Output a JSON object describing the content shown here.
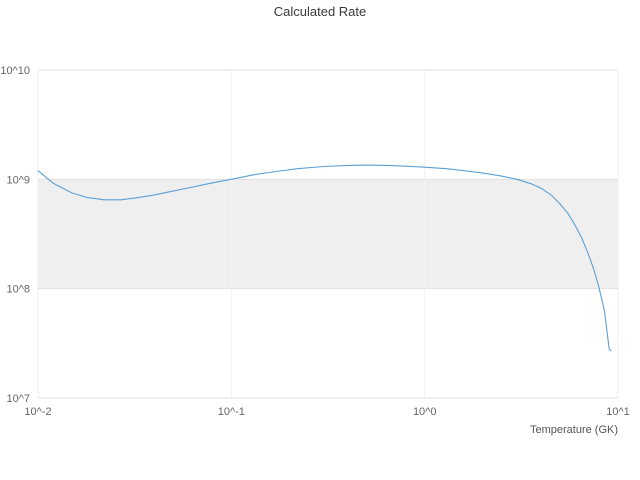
{
  "colors": {
    "line": "#5c9fd6",
    "band": "#efefef",
    "grid_h": "#e2e2e2",
    "grid_v": "#f2f2f2",
    "title_text": "#3b3b3b",
    "tick_text": "#666666"
  },
  "chart_data": {
    "type": "line",
    "title": "Calculated Rate",
    "xlabel": "Temperature (GK)",
    "ylabel": "",
    "x_scale": "log",
    "y_scale": "log",
    "xlim": [
      0.01,
      10
    ],
    "ylim": [
      10000000,
      10000000000
    ],
    "grid": true,
    "legend": "none",
    "shaded_band_y": [
      100000000,
      1000000000
    ],
    "x_tick_values": [
      0.01,
      0.1,
      1,
      10
    ],
    "x_tick_labels": [
      "10^-2",
      "10^-1",
      "10^0",
      "10^1"
    ],
    "y_tick_values": [
      10000000,
      100000000,
      1000000000,
      10000000000
    ],
    "y_tick_labels": [
      "10^7",
      "10^8",
      "10^9",
      "10^10"
    ],
    "series": [
      {
        "name": "Calculated Rate",
        "x": [
          0.01,
          0.012,
          0.015,
          0.018,
          0.022,
          0.027,
          0.033,
          0.04,
          0.05,
          0.065,
          0.08,
          0.1,
          0.13,
          0.17,
          0.22,
          0.3,
          0.4,
          0.5,
          0.65,
          0.8,
          1.0,
          1.3,
          1.6,
          2.0,
          2.5,
          3.0,
          3.5,
          4.0,
          4.5,
          5.0,
          5.5,
          6.0,
          6.5,
          7.0,
          7.5,
          8.0,
          8.5,
          9.0,
          9.2
        ],
        "y": [
          1200000000,
          920000000,
          750000000,
          680000000,
          650000000,
          650000000,
          680000000,
          720000000,
          780000000,
          860000000,
          930000000,
          1000000000,
          1100000000,
          1180000000,
          1250000000,
          1310000000,
          1340000000,
          1350000000,
          1340000000,
          1320000000,
          1290000000,
          1250000000,
          1200000000,
          1140000000,
          1070000000,
          1000000000,
          920000000,
          830000000,
          720000000,
          600000000,
          490000000,
          380000000,
          290000000,
          210000000,
          150000000,
          100000000,
          63000000,
          28000000,
          27000000
        ]
      }
    ]
  }
}
